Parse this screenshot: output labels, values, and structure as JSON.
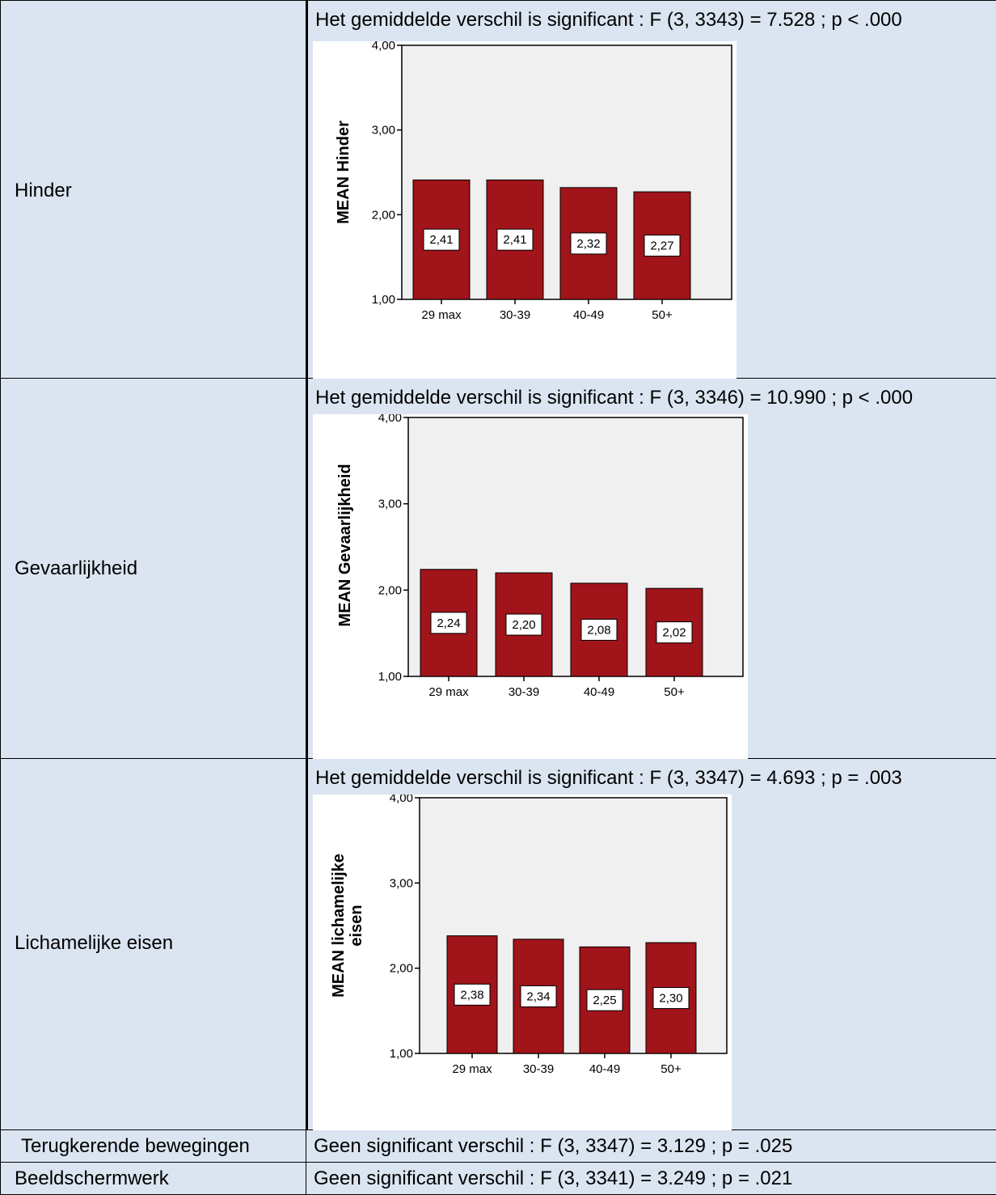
{
  "rows": [
    {
      "label": "Hinder",
      "stat": "Het gemiddelde verschil is significant : F (3, 3343) = 7.528 ; p < .000"
    },
    {
      "label": "Gevaarlijkheid",
      "stat": "Het gemiddelde verschil is significant : F (3, 3346) = 10.990 ; p < .000"
    },
    {
      "label": "Lichamelijke eisen",
      "stat": "Het gemiddelde verschil is significant : F (3, 3347) = 4.693 ; p = .003"
    },
    {
      "label": "Terugkerende bewegingen",
      "stat": "Geen significant verschil : F (3, 3347) = 3.129 ; p = .025"
    },
    {
      "label": "Beeldschermwerk",
      "stat": "Geen significant verschil : F (3, 3341) = 3.249 ; p = .021"
    }
  ],
  "colors": {
    "cell_background": "#dbe5f1",
    "bar_fill": "#a0141a",
    "plot_background": "#f0f0f0"
  },
  "chart_data": [
    {
      "type": "bar",
      "ylabel": "MEAN Hinder",
      "ylabel_lines": [
        "MEAN Hinder"
      ],
      "categories": [
        "29 max",
        "30-39",
        "40-49",
        "50+"
      ],
      "values": [
        2.41,
        2.41,
        2.32,
        2.27
      ],
      "data_labels": [
        "2,41",
        "2,41",
        "2,32",
        "2,27"
      ],
      "ylim": [
        1,
        4
      ],
      "yticks": [
        1,
        2,
        3,
        4
      ],
      "ytick_labels": [
        "1,00",
        "2,00",
        "3,00",
        "4,00"
      ],
      "grid": false,
      "legend": "none"
    },
    {
      "type": "bar",
      "ylabel": "MEAN Gevaarlijkheid",
      "ylabel_lines": [
        "MEAN Gevaarlijkheid"
      ],
      "categories": [
        "29 max",
        "30-39",
        "40-49",
        "50+"
      ],
      "values": [
        2.24,
        2.2,
        2.08,
        2.02
      ],
      "data_labels": [
        "2,24",
        "2,20",
        "2,08",
        "2,02"
      ],
      "ylim": [
        1,
        4
      ],
      "yticks": [
        1,
        2,
        3,
        4
      ],
      "ytick_labels": [
        "1,00",
        "2,00",
        "3,00",
        "4,00"
      ],
      "grid": false,
      "legend": "none"
    },
    {
      "type": "bar",
      "ylabel": "MEAN lichamelijke eisen",
      "ylabel_lines": [
        "MEAN lichamelijke",
        "eisen"
      ],
      "categories": [
        "29 max",
        "30-39",
        "40-49",
        "50+"
      ],
      "values": [
        2.38,
        2.34,
        2.25,
        2.3
      ],
      "data_labels": [
        "2,38",
        "2,34",
        "2,25",
        "2,30"
      ],
      "ylim": [
        1,
        4
      ],
      "yticks": [
        1,
        2,
        3,
        4
      ],
      "ytick_labels": [
        "1,00",
        "2,00",
        "3,00",
        "4,00"
      ],
      "grid": false,
      "legend": "none"
    }
  ]
}
